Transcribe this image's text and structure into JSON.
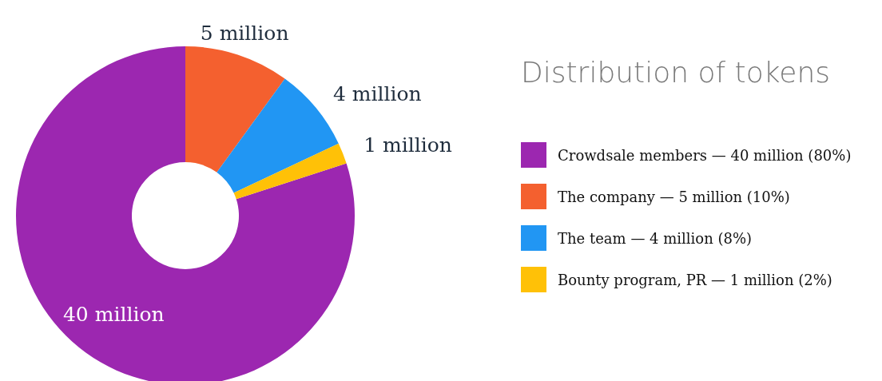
{
  "chart_data": {
    "type": "donut",
    "title": "Distribution of tokens",
    "categories": [
      "Crowdsale members — 40 million (80%)",
      "The company — 5 million (10%)",
      "The team — 4 million (8%)",
      "Bounty program, PR — 1 million (2%)"
    ],
    "values": [
      40,
      5,
      4,
      1
    ],
    "value_labels": [
      "40 million",
      "5 million",
      "4 million",
      "1 million"
    ],
    "colors": [
      "#9c27b0",
      "#f4602f",
      "#2196f3",
      "#ffc107"
    ],
    "legend": "right"
  }
}
